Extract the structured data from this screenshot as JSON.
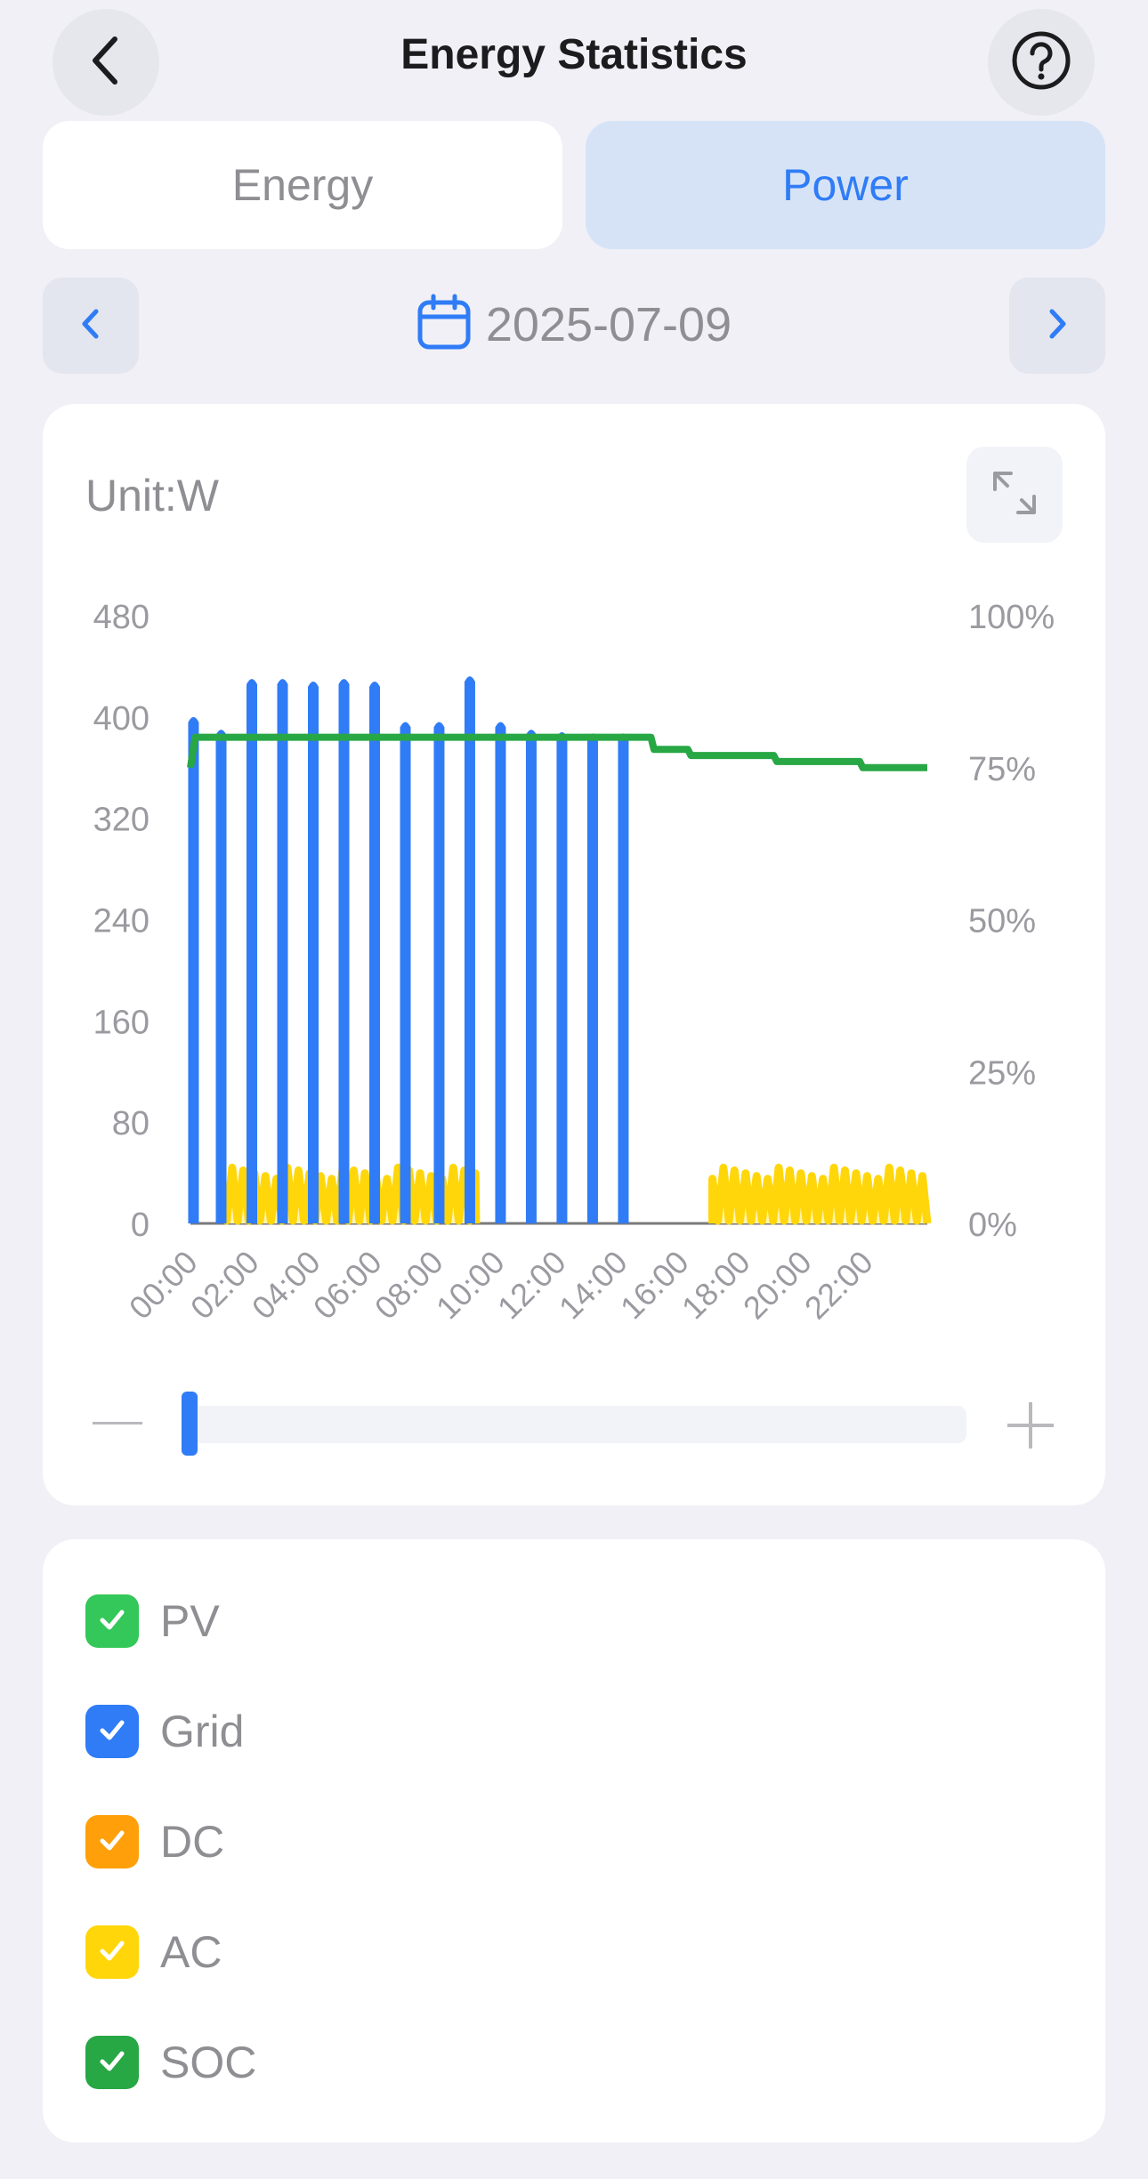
{
  "header": {
    "title": "Energy Statistics",
    "back_icon": "chevron-left-icon",
    "help_icon": "question-circle-icon"
  },
  "tabs": [
    {
      "label": "Energy",
      "selected": false
    },
    {
      "label": "Power",
      "selected": true
    }
  ],
  "date_nav": {
    "date": "2025-07-09",
    "prev_icon": "chevron-left-icon",
    "next_icon": "chevron-right-icon",
    "calendar_icon": "calendar-icon"
  },
  "chart_card": {
    "unit": "Unit:W",
    "expand_icon": "expand-icon"
  },
  "slider": {
    "minus_icon": "minus-icon",
    "plus_icon": "plus-icon",
    "position": 0
  },
  "legend": [
    {
      "label": "PV",
      "color": "#34c759",
      "checked": true
    },
    {
      "label": "Grid",
      "color": "#2f7cf6",
      "checked": true
    },
    {
      "label": "DC",
      "color": "#ff9f0a",
      "checked": true
    },
    {
      "label": "AC",
      "color": "#ffd60a",
      "checked": true
    },
    {
      "label": "SOC",
      "color": "#28a745",
      "checked": true
    }
  ],
  "chart_data": {
    "type": "line",
    "y_left": {
      "ticks": [
        "480",
        "400",
        "320",
        "240",
        "160",
        "80",
        "0"
      ],
      "range": [
        0,
        480
      ]
    },
    "y_right": {
      "ticks": [
        "100%",
        "75%",
        "50%",
        "25%",
        "0%"
      ],
      "range": [
        0,
        100
      ]
    },
    "x_ticks": [
      "00:00",
      "02:00",
      "04:00",
      "06:00",
      "08:00",
      "10:00",
      "12:00",
      "14:00",
      "16:00",
      "18:00",
      "20:00",
      "22:00"
    ],
    "x_range_hours": [
      0,
      24
    ],
    "grid": false,
    "series": [
      {
        "name": "Grid",
        "color": "#2f7cf6",
        "axis": "left",
        "spikes": [
          [
            0.1,
            400
          ],
          [
            1.0,
            390
          ],
          [
            2.0,
            430
          ],
          [
            3.0,
            430
          ],
          [
            4.0,
            428
          ],
          [
            5.0,
            430
          ],
          [
            6.0,
            428
          ],
          [
            7.0,
            396
          ],
          [
            8.1,
            396
          ],
          [
            9.1,
            432
          ],
          [
            10.1,
            396
          ],
          [
            11.1,
            390
          ],
          [
            12.1,
            388
          ],
          [
            13.1,
            387
          ],
          [
            14.1,
            387
          ]
        ]
      },
      {
        "name": "AC",
        "color": "#ffd60a",
        "axis": "left",
        "active_ranges": [
          [
            1.0,
            9.3
          ],
          [
            17.0,
            24.0
          ]
        ],
        "peak": 44
      },
      {
        "name": "SOC",
        "color": "#28a745",
        "axis": "right",
        "points": [
          [
            0.0,
            75
          ],
          [
            0.15,
            80
          ],
          [
            15.0,
            80
          ],
          [
            15.1,
            78
          ],
          [
            16.2,
            78
          ],
          [
            16.3,
            77
          ],
          [
            19.0,
            77
          ],
          [
            19.1,
            76
          ],
          [
            21.8,
            76
          ],
          [
            21.9,
            75
          ],
          [
            24.0,
            75
          ]
        ]
      }
    ]
  }
}
